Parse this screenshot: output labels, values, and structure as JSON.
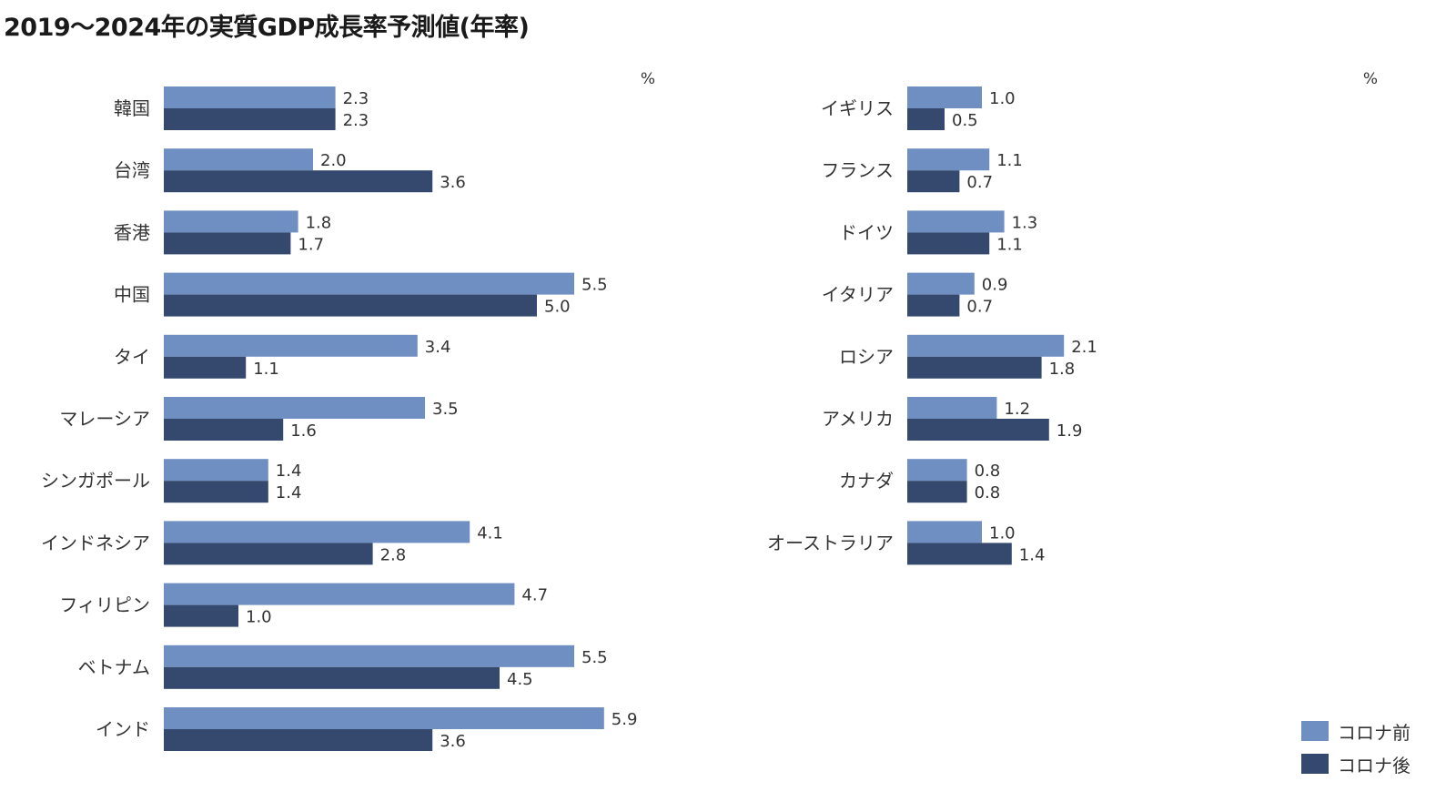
{
  "title": "2019〜2024年の実質GDP成長率予測値(年率)",
  "colors": {
    "pre": "#6f8ec1",
    "post": "#34496d"
  },
  "legend": [
    {
      "label": "コロナ前",
      "color": "#6f8ec1"
    },
    {
      "label": "コロナ後",
      "color": "#34496d"
    }
  ],
  "chart_data": [
    {
      "type": "bar",
      "orientation": "horizontal",
      "unit": "%",
      "categories": [
        "韓国",
        "台湾",
        "香港",
        "中国",
        "タイ",
        "マレーシア",
        "シンガポール",
        "インドネシア",
        "フィリピン",
        "ベトナム",
        "インド"
      ],
      "series": [
        {
          "name": "コロナ前",
          "values": [
            2.3,
            2.0,
            1.8,
            5.5,
            3.4,
            3.5,
            1.4,
            4.1,
            4.7,
            5.5,
            5.9
          ]
        },
        {
          "name": "コロナ後",
          "values": [
            2.3,
            3.6,
            1.7,
            5.0,
            1.1,
            1.6,
            1.4,
            2.8,
            1.0,
            4.5,
            3.6
          ]
        }
      ],
      "xlim": [
        0,
        7
      ]
    },
    {
      "type": "bar",
      "orientation": "horizontal",
      "unit": "%",
      "categories": [
        "イギリス",
        "フランス",
        "ドイツ",
        "イタリア",
        "ロシア",
        "アメリカ",
        "カナダ",
        "オーストラリア"
      ],
      "series": [
        {
          "name": "コロナ前",
          "values": [
            1.0,
            1.1,
            1.3,
            0.9,
            2.1,
            1.2,
            0.8,
            1.0
          ]
        },
        {
          "name": "コロナ後",
          "values": [
            0.5,
            0.7,
            1.1,
            0.7,
            1.8,
            1.9,
            0.8,
            1.4
          ]
        }
      ],
      "xlim": [
        0,
        7
      ]
    }
  ]
}
